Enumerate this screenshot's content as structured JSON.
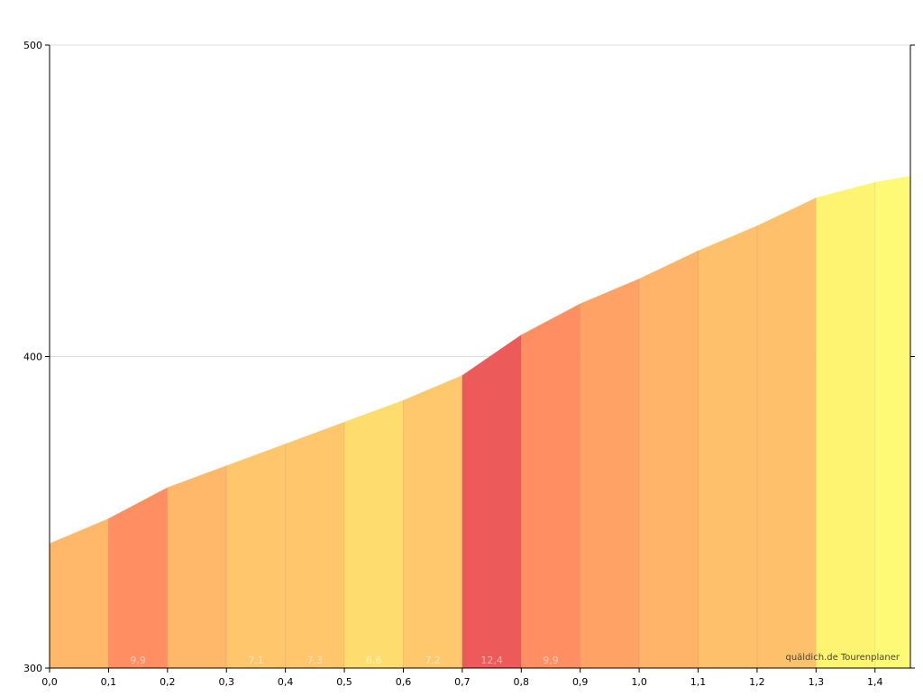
{
  "chart_data": {
    "type": "area",
    "title": "",
    "xlabel": "",
    "ylabel": "",
    "xlim": [
      0.0,
      1.46
    ],
    "ylim": [
      300,
      500
    ],
    "grid": true,
    "x_ticks": [
      "0,0",
      "0,1",
      "0,2",
      "0,3",
      "0,4",
      "0,5",
      "0,6",
      "0,7",
      "0,8",
      "0,9",
      "1,0",
      "1,1",
      "1,2",
      "1,3",
      "1,4"
    ],
    "y_ticks": [
      "300",
      "400",
      "500"
    ],
    "profile": {
      "x": [
        0.0,
        0.1,
        0.2,
        0.3,
        0.4,
        0.5,
        0.6,
        0.7,
        0.8,
        0.9,
        1.0,
        1.1,
        1.2,
        1.3,
        1.4,
        1.46
      ],
      "y": [
        340,
        348,
        358,
        365,
        372,
        379,
        386,
        394,
        407,
        417,
        425,
        434,
        442,
        451,
        456,
        458
      ]
    },
    "segments": [
      {
        "from": 0.0,
        "to": 0.1,
        "label": "",
        "color": "#ffb86a"
      },
      {
        "from": 0.1,
        "to": 0.2,
        "label": "9,9",
        "color": "#ff8f62"
      },
      {
        "from": 0.2,
        "to": 0.3,
        "label": "",
        "color": "#ffb86a"
      },
      {
        "from": 0.3,
        "to": 0.4,
        "label": "7,1",
        "color": "#ffc66c"
      },
      {
        "from": 0.4,
        "to": 0.5,
        "label": "7,3",
        "color": "#ffc66c"
      },
      {
        "from": 0.5,
        "to": 0.6,
        "label": "6,6",
        "color": "#ffdc6e"
      },
      {
        "from": 0.6,
        "to": 0.7,
        "label": "7,2",
        "color": "#ffc86c"
      },
      {
        "from": 0.7,
        "to": 0.8,
        "label": "12,4",
        "color": "#ec5a5a"
      },
      {
        "from": 0.8,
        "to": 0.9,
        "label": "9,9",
        "color": "#ff8f62"
      },
      {
        "from": 0.9,
        "to": 1.0,
        "label": "",
        "color": "#ffa266"
      },
      {
        "from": 1.0,
        "to": 1.1,
        "label": "",
        "color": "#ffb469"
      },
      {
        "from": 1.1,
        "to": 1.2,
        "label": "",
        "color": "#ffc06b"
      },
      {
        "from": 1.2,
        "to": 1.3,
        "label": "",
        "color": "#ffc06b"
      },
      {
        "from": 1.3,
        "to": 1.4,
        "label": "",
        "color": "#fff472"
      },
      {
        "from": 1.4,
        "to": 1.46,
        "label": "",
        "color": "#fffa75"
      }
    ],
    "credit": "quäldich.de Tourenplaner"
  }
}
